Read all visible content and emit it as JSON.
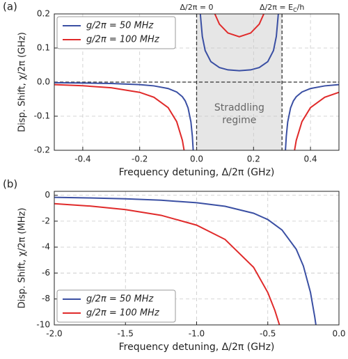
{
  "chart_data": [
    {
      "type": "line",
      "panel_label": "(a)",
      "x_label": "Frequency detuning, Δ/2π (GHz)",
      "y_label": "Disp. Shift, χ/2π (GHz)",
      "xlim": [
        -0.5,
        0.5
      ],
      "ylim": [
        -0.2,
        0.2
      ],
      "xticks": [
        -0.4,
        -0.2,
        {
          "value": 0,
          "label": "0.0"
        },
        0.2,
        0.4
      ],
      "yticks": [
        -0.2,
        -0.1,
        {
          "value": 0,
          "label": "0.0"
        },
        0.1,
        0.2
      ],
      "grid": true,
      "legend": "upper left",
      "region": {
        "x": [
          0,
          0.3
        ],
        "text": [
          "Straddling",
          "regime"
        ]
      },
      "annotations": [
        {
          "text": "Δ/2π = 0",
          "x": 0
        },
        {
          "text": "Δ/2π = E",
          "sub": "C",
          "tail": "/h",
          "x": 0.3
        }
      ],
      "series": [
        {
          "name": "g/2π = 50 MHz",
          "color": "#3a4fa3",
          "x": [
            -0.5,
            -0.4,
            -0.3,
            -0.2,
            -0.15,
            -0.1,
            -0.07,
            -0.05,
            -0.04,
            -0.03,
            -0.02,
            -0.015,
            -0.012,
            null,
            0.013,
            0.02,
            0.03,
            0.05,
            0.08,
            0.11,
            0.15,
            0.19,
            0.22,
            0.25,
            0.27,
            0.28,
            0.287,
            null,
            0.312,
            0.315,
            0.32,
            0.33,
            0.34,
            0.35,
            0.37,
            0.4,
            0.45,
            0.5
          ],
          "values": [
            -0.0019,
            -0.0027,
            -0.0042,
            -0.0075,
            -0.0111,
            -0.0188,
            -0.029,
            -0.0429,
            -0.0551,
            -0.0758,
            -0.117,
            -0.159,
            -0.2,
            null,
            0.2,
            0.134,
            0.0926,
            0.06,
            0.0426,
            0.0359,
            0.0333,
            0.0359,
            0.0426,
            0.06,
            0.0926,
            0.134,
            0.2,
            null,
            -0.2,
            -0.159,
            -0.117,
            -0.0758,
            -0.0551,
            -0.0429,
            -0.029,
            -0.0188,
            -0.0111,
            -0.0075
          ]
        },
        {
          "name": "g/2π = 100 MHz",
          "color": "#e02a2a",
          "x": [
            -0.5,
            -0.4,
            -0.3,
            -0.2,
            -0.15,
            -0.1,
            -0.07,
            -0.05,
            -0.044,
            null,
            0.064,
            0.08,
            0.11,
            0.15,
            0.19,
            0.22,
            0.236,
            null,
            0.344,
            0.35,
            0.37,
            0.4,
            0.45,
            0.5
          ],
          "values": [
            -0.0075,
            -0.0107,
            -0.0167,
            -0.03,
            -0.0444,
            -0.075,
            -0.116,
            -0.171,
            -0.2,
            null,
            0.2,
            0.17,
            0.144,
            0.133,
            0.144,
            0.17,
            0.2,
            null,
            -0.2,
            -0.171,
            -0.116,
            -0.075,
            -0.0444,
            -0.03
          ]
        }
      ]
    },
    {
      "type": "line",
      "panel_label": "(b)",
      "x_label": "Frequency detuning, Δ/2π (GHz)",
      "y_label": "Disp. Shift, χ/2π (MHz)",
      "xlim": [
        -2,
        0
      ],
      "ylim": [
        -10,
        0.3
      ],
      "xticks": [
        {
          "value": -2,
          "label": "-2.0"
        },
        {
          "value": -1.5,
          "label": "-1.5"
        },
        {
          "value": -1,
          "label": "-1.0"
        },
        {
          "value": -0.5,
          "label": "-0.5"
        },
        {
          "value": 0,
          "label": "0.0"
        }
      ],
      "yticks": [
        0,
        -2,
        -4,
        -6,
        -8,
        -10
      ],
      "grid": true,
      "legend": "lower left",
      "series": [
        {
          "name": "g/2π = 50 MHz",
          "color": "#3a4fa3",
          "x": [
            -2,
            -1.75,
            -1.5,
            -1.25,
            -1,
            -0.8,
            -0.6,
            -0.5,
            -0.4,
            -0.3,
            -0.25,
            -0.2,
            -0.17,
            -0.162
          ],
          "values": [
            -0.163,
            -0.209,
            -0.278,
            -0.387,
            -0.577,
            -0.852,
            -1.389,
            -1.875,
            -2.679,
            -4.167,
            -5.455,
            -7.5,
            -9.39,
            -10
          ]
        },
        {
          "name": "g/2π = 100 MHz",
          "color": "#e02a2a",
          "x": [
            -2,
            -1.75,
            -1.5,
            -1.25,
            -1,
            -0.8,
            -0.6,
            -0.5,
            -0.45,
            -0.418
          ],
          "values": [
            -0.652,
            -0.836,
            -1.111,
            -1.548,
            -2.308,
            -3.409,
            -5.556,
            -7.5,
            -8.89,
            -10
          ]
        }
      ]
    }
  ]
}
